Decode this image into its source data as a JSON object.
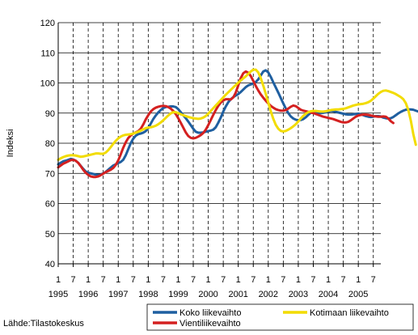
{
  "chart_data": {
    "type": "line",
    "title": "",
    "xlabel": "",
    "ylabel": "Indeksi",
    "ylim": [
      40,
      120
    ],
    "yticks": [
      40,
      50,
      60,
      70,
      80,
      90,
      100,
      110,
      120
    ],
    "x_tick_labels": [
      "1",
      "7",
      "1",
      "7",
      "1",
      "7",
      "1",
      "7",
      "1",
      "7",
      "1",
      "7",
      "1",
      "7",
      "1",
      "7",
      "1",
      "7",
      "1",
      "7",
      "1",
      "7"
    ],
    "years": [
      "1995",
      "1996",
      "1997",
      "1998",
      "1999",
      "2000",
      "2001",
      "2002",
      "2003",
      "2004",
      "2005"
    ],
    "x_range": [
      1995.0,
      2005.75
    ],
    "x_step": 0.0833333,
    "grid": true,
    "legend_position": "bottom-right",
    "source": "Lähde:Tilastokeskus",
    "series": [
      {
        "name": "Koko liikevaihto",
        "color": "#1f5fa0",
        "values": [
          73,
          73.5,
          74,
          74.2,
          74.5,
          74.8,
          74.6,
          74.2,
          73.5,
          72.5,
          71.5,
          70.6,
          70.2,
          70,
          69.8,
          69.6,
          69.5,
          69.6,
          70,
          70.5,
          71.2,
          71.9,
          72.6,
          73,
          73.4,
          73.8,
          74.5,
          76,
          78,
          80,
          81.5,
          82.5,
          83,
          83.2,
          83.5,
          84,
          85,
          86.5,
          88,
          89.2,
          90.2,
          91,
          91.7,
          92,
          92.1,
          92.2,
          92.2,
          92,
          91.3,
          90.3,
          89.3,
          88.3,
          87.2,
          86,
          84.8,
          83.8,
          83.5,
          83.5,
          83.6,
          83.8,
          84,
          84.2,
          84.5,
          85.3,
          86.8,
          88.5,
          90.5,
          92.2,
          93.6,
          94.6,
          95.3,
          95.8,
          96.3,
          97,
          97.8,
          98.6,
          99.2,
          99.5,
          99.8,
          100.3,
          101.2,
          102.5,
          103.8,
          104.2,
          103.5,
          102,
          100.2,
          98.5,
          96.8,
          95,
          93.2,
          91.5,
          90,
          88.9,
          88.2,
          87.8,
          87.6,
          87.7,
          88,
          88.6,
          89.4,
          90.1,
          90.4,
          90.3,
          90.1,
          90,
          90.1,
          90.3,
          90.5,
          90.7,
          90.6,
          90.4,
          90.2,
          90,
          89.8,
          89.6,
          89.5,
          89.5,
          89.6,
          89.7,
          89.8,
          89.6,
          89.3,
          89,
          88.8,
          88.7,
          88.8,
          89,
          89,
          88.9,
          88.5,
          88.3,
          88.2,
          88.3,
          88.7,
          89.3,
          89.9,
          90.4,
          90.8,
          91.1,
          91.2,
          91.2,
          91.1,
          90.8,
          90.5,
          90.3,
          90.5,
          90.9,
          91.1,
          91.1,
          90.7,
          89.8,
          88.7,
          87.8,
          87.3,
          87.1,
          87
        ]
      },
      {
        "name": "Kotimaan liikevaihto",
        "color": "#f2dc00",
        "values": [
          74.5,
          75,
          75.4,
          75.7,
          75.9,
          76,
          76,
          75.9,
          75.7,
          75.5,
          75.6,
          75.8,
          76,
          76.2,
          76.4,
          76.6,
          76.6,
          76.5,
          76.5,
          76.9,
          77.7,
          78.7,
          79.8,
          80.8,
          81.6,
          82.2,
          82.6,
          82.8,
          82.9,
          83,
          83.2,
          83.5,
          83.8,
          84.2,
          84.6,
          85,
          85.2,
          85.3,
          85.5,
          85.8,
          86.3,
          86.9,
          87.6,
          88.4,
          89.2,
          89.9,
          90.3,
          90.3,
          90,
          89.6,
          89.3,
          89,
          88.7,
          88.5,
          88.3,
          88.2,
          88.1,
          88.2,
          88.5,
          89,
          89.8,
          90.7,
          91.6,
          92.5,
          93.4,
          94.3,
          95.2,
          96.1,
          96.9,
          97.7,
          98.5,
          99.3,
          100.1,
          100.8,
          101.5,
          102.2,
          103,
          103.8,
          104.4,
          104.4,
          103.5,
          101.6,
          99.1,
          96.4,
          93.5,
          90.6,
          88.1,
          86.1,
          84.8,
          84.1,
          83.9,
          84.1,
          84.5,
          85,
          85.6,
          86.3,
          87.2,
          88.2,
          89.1,
          89.8,
          90.3,
          90.6,
          90.7,
          90.7,
          90.6,
          90.5,
          90.5,
          90.6,
          90.8,
          91,
          91.1,
          91.2,
          91.2,
          91.3,
          91.4,
          91.6,
          91.9,
          92.2,
          92.5,
          92.7,
          92.9,
          93,
          93.1,
          93.3,
          93.6,
          94.1,
          94.8,
          95.6,
          96.4,
          97,
          97.4,
          97.5,
          97.3,
          97,
          96.7,
          96.3,
          95.8,
          95.3,
          94.6,
          93.3,
          91,
          87.5,
          83,
          79.5
        ]
      },
      {
        "name": "Vientiliikevaihto",
        "color": "#d42020",
        "values": [
          72,
          72.6,
          73.2,
          73.6,
          74,
          74.4,
          74.5,
          74.2,
          73.5,
          72.4,
          71.2,
          70.2,
          69.5,
          69,
          68.8,
          68.8,
          69,
          69.4,
          69.9,
          70.4,
          70.8,
          71.2,
          71.8,
          72.8,
          74.3,
          76.3,
          78.5,
          80.3,
          81.7,
          82.6,
          83.2,
          83.6,
          84,
          84.8,
          86.2,
          87.9,
          89.3,
          90.5,
          91.3,
          91.8,
          92.1,
          92.3,
          92.4,
          92.3,
          92,
          91.5,
          90.7,
          89.7,
          88.3,
          86.8,
          85.2,
          83.6,
          82.4,
          81.8,
          81.6,
          81.8,
          82.2,
          82.7,
          83.4,
          84.5,
          86,
          87.7,
          89.4,
          91,
          92.4,
          93.5,
          94.2,
          94.6,
          94.6,
          94.5,
          95.2,
          96.8,
          99.2,
          101.6,
          103.2,
          103.8,
          103.4,
          102.3,
          100.7,
          99,
          97.5,
          96.2,
          95.1,
          94.1,
          93.2,
          92.4,
          91.8,
          91.3,
          91,
          90.8,
          90.8,
          91,
          91.5,
          92.1,
          92.5,
          92.3,
          91.7,
          91.1,
          90.8,
          90.6,
          90.4,
          90.2,
          90,
          89.7,
          89.4,
          89.1,
          88.8,
          88.6,
          88.4,
          88.2,
          88,
          87.7,
          87.4,
          87.1,
          86.9,
          86.9,
          87.1,
          87.6,
          88.2,
          88.8,
          89.2,
          89.4,
          89.5,
          89.5,
          89.4,
          89.2,
          89,
          88.9,
          88.8,
          88.8,
          88.9,
          88.8,
          88.2,
          87.3,
          86.7
        ]
      }
    ]
  }
}
